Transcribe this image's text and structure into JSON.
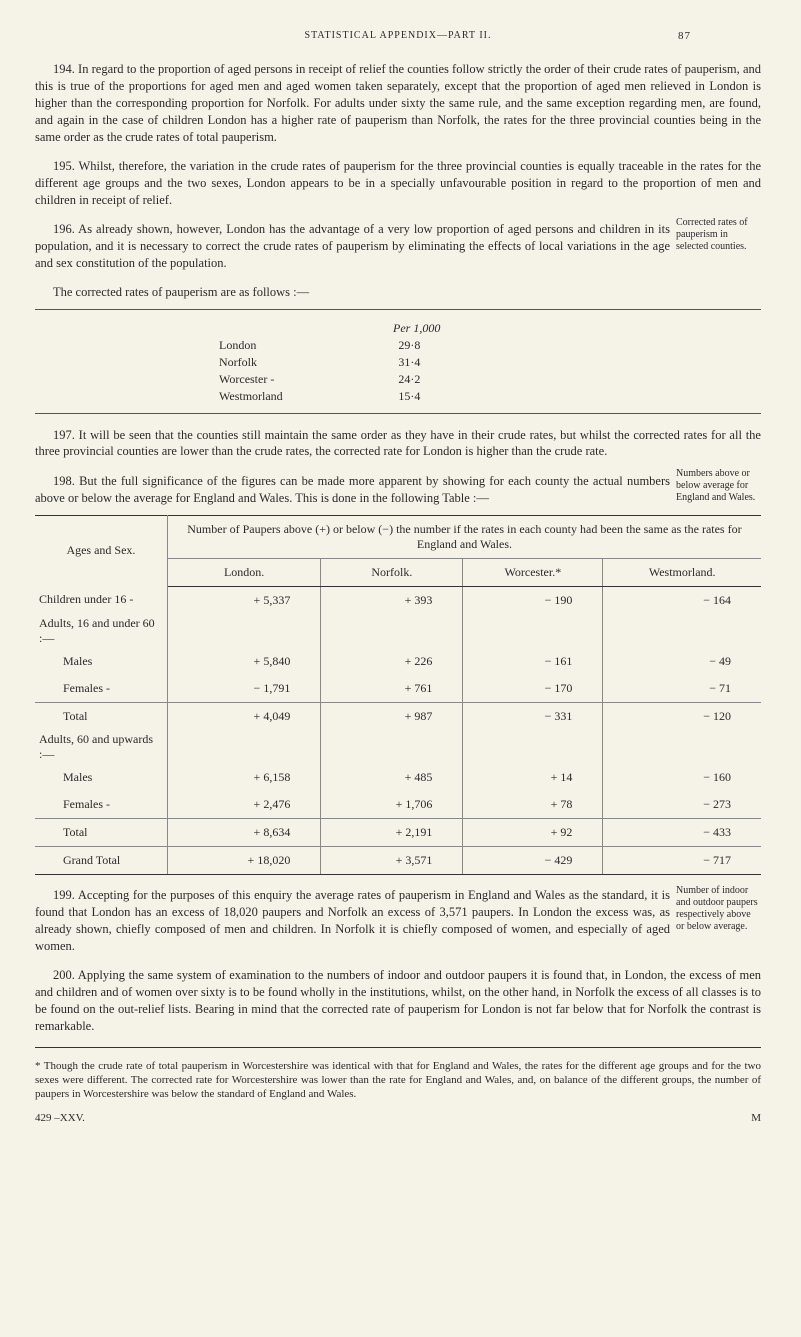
{
  "header": {
    "running_head": "STATISTICAL APPENDIX—PART II.",
    "page_number": "87"
  },
  "para194": "194. In regard to the proportion of aged persons in receipt of relief the counties follow strictly the order of their crude rates of pauperism, and this is true of the proportions for aged men and aged women taken separately, except that the proportion of aged men relieved in London is higher than the corresponding proportion for Norfolk. For adults under sixty the same rule, and the same exception regarding men, are found, and again in the case of children London has a higher rate of pauperism than Norfolk, the rates for the three provincial counties being in the same order as the crude rates of total pauperism.",
  "para195": "195. Whilst, therefore, the variation in the crude rates of pauperism for the three provincial counties is equally traceable in the rates for the different age groups and the two sexes, London appears to be in a specially unfavourable position in regard to the proportion of men and children in receipt of relief.",
  "para196": "196. As already shown, however, London has the advantage of a very low proportion of aged persons and children in its population, and it is necessary to correct the crude rates of pauperism by eliminating the effects of local variations in the age and sex constitution of the population.",
  "margin_note_196": "Corrected rates of pauperism in selected counties.",
  "corrected_intro": "The corrected rates of pauperism are as follows :—",
  "table1": {
    "header": "Per 1,000",
    "rows": [
      {
        "name": "London",
        "value": "29·8"
      },
      {
        "name": "Norfolk",
        "value": "31·4"
      },
      {
        "name": "Worcester -",
        "value": "24·2"
      },
      {
        "name": "Westmorland",
        "value": "15·4"
      }
    ]
  },
  "para197": "197. It will be seen that the counties still maintain the same order as they have in their crude rates, but whilst the corrected rates for all the three provincial counties are lower than the crude rates, the corrected rate for London is higher than the crude rate.",
  "para198": "198. But the full significance of the figures can be made more apparent by showing for each county the actual numbers above or below the average for England and Wales. This is done in the following Table :—",
  "margin_note_198": "Numbers above or below average for England and Wales.",
  "table2": {
    "row_header": "Ages and Sex.",
    "span_header": "Number of Paupers above (+) or below (−) the number if the rates in each county had been the same as the rates for England and Wales.",
    "columns": [
      "London.",
      "Norfolk.",
      "Worcester.*",
      "Westmorland."
    ],
    "rows": [
      {
        "label": "Children under 16 -",
        "vals": [
          "+ 5,337",
          "+ 393",
          "− 190",
          "− 164"
        ]
      },
      {
        "label": "Adults, 16 and under 60 :—",
        "section": true
      },
      {
        "label": "Males",
        "indent": true,
        "vals": [
          "+ 5,840",
          "+ 226",
          "− 161",
          "− 49"
        ]
      },
      {
        "label": "Females -",
        "indent": true,
        "vals": [
          "− 1,791",
          "+ 761",
          "− 170",
          "− 71"
        ]
      },
      {
        "label": "Total",
        "indent": true,
        "subtotal": true,
        "vals": [
          "+ 4,049",
          "+ 987",
          "− 331",
          "− 120"
        ]
      },
      {
        "label": "Adults, 60 and upwards :—",
        "section": true
      },
      {
        "label": "Males",
        "indent": true,
        "vals": [
          "+ 6,158",
          "+ 485",
          "+ 14",
          "− 160"
        ]
      },
      {
        "label": "Females -",
        "indent": true,
        "vals": [
          "+ 2,476",
          "+ 1,706",
          "+ 78",
          "− 273"
        ]
      },
      {
        "label": "Total",
        "indent": true,
        "subtotal": true,
        "vals": [
          "+ 8,634",
          "+ 2,191",
          "+ 92",
          "− 433"
        ]
      },
      {
        "label": "Grand Total",
        "indent": true,
        "grand": true,
        "vals": [
          "+ 18,020",
          "+ 3,571",
          "− 429",
          "− 717"
        ]
      }
    ]
  },
  "para199": "199. Accepting for the purposes of this enquiry the average rates of pauperism in England and Wales as the standard, it is found that London has an excess of 18,020 paupers and Norfolk an excess of 3,571 paupers. In London the excess was, as already shown, chiefly composed of men and children. In Norfolk it is chiefly composed of women, and especially of aged women.",
  "margin_note_199": "Number of indoor and outdoor paupers respectively above or below average.",
  "para200": "200. Applying the same system of examination to the numbers of indoor and outdoor paupers it is found that, in London, the excess of men and children and of women over sixty is to be found wholly in the institutions, whilst, on the other hand, in Norfolk the excess of all classes is to be found on the out-relief lists. Bearing in mind that the corrected rate of pauperism for London is not far below that for Norfolk the contrast is remarkable.",
  "footnote": "* Though the crude rate of total pauperism in Worcestershire was identical with that for England and Wales, the rates for the different age groups and for the two sexes were different. The corrected rate for Worcestershire was lower than the rate for England and Wales, and, on balance of the different groups, the number of paupers in Worcestershire was below the standard of England and Wales.",
  "footer": {
    "left": "429 –XXV.",
    "right": "M"
  }
}
